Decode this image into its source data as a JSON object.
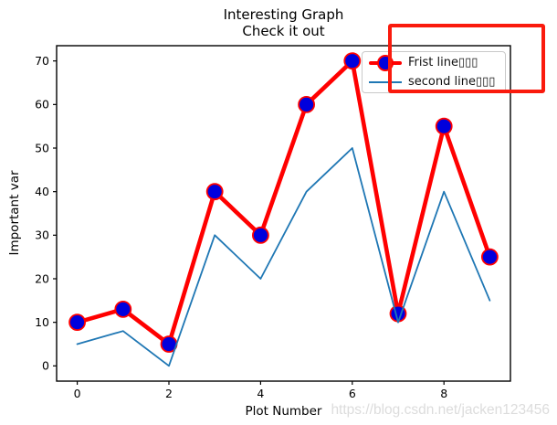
{
  "figure": {
    "title_line1": "Interesting Graph",
    "title_line2": "Check it out",
    "xlabel": "Plot Number",
    "ylabel": "Important var",
    "watermark": "https://blog.csdn.net/jacken123456",
    "background": "#ffffff"
  },
  "legend": {
    "position": "upper right",
    "entries": [
      {
        "label": "Frist line▯▯▯",
        "sample": "thick-red-line-with-blue-circle-marker"
      },
      {
        "label": "second line▯▯▯",
        "sample": "thin-blue-line"
      }
    ]
  },
  "annotation": {
    "shape": "rectangle",
    "color": "#fa1a0d",
    "target": "legend-highlight-box"
  },
  "chart_data": {
    "type": "line",
    "title": "Interesting Graph\nCheck it out",
    "xlabel": "Plot Number",
    "ylabel": "Important var",
    "x": [
      0,
      1,
      2,
      3,
      4,
      5,
      6,
      7,
      8,
      9
    ],
    "series": [
      {
        "name": "Frist line▯▯▯",
        "values": [
          10,
          13,
          5,
          40,
          30,
          60,
          70,
          12,
          55,
          25
        ],
        "color": "#ff0000",
        "linewidth": 4.6,
        "marker": {
          "shape": "circle",
          "fill": "#0000dd",
          "edge": "#ff0000",
          "size": 17
        }
      },
      {
        "name": "second line▯▯▯",
        "values": [
          5,
          8,
          0,
          30,
          20,
          40,
          50,
          10,
          40,
          15
        ],
        "color": "#1f77b4",
        "linewidth": 1.8,
        "marker": null
      }
    ],
    "xticks": [
      0,
      2,
      4,
      6,
      8
    ],
    "yticks": [
      0,
      10,
      20,
      30,
      40,
      50,
      60,
      70
    ],
    "xlim": [
      -0.45,
      9.45
    ],
    "ylim": [
      -3.5,
      73.5
    ],
    "grid": false,
    "legend_position": "upper right"
  }
}
